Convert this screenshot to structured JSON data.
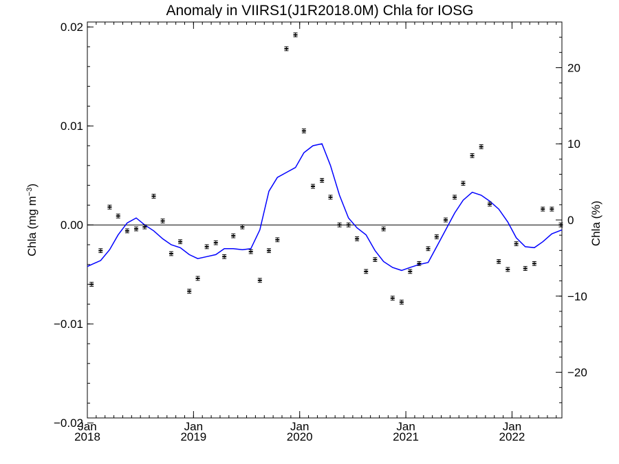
{
  "chart_data": {
    "type": "line",
    "title": "Anomaly in VIIRS1(J1R2018.0M) Chla for IOSG",
    "ylabel": "Chla (mg m",
    "ylabel_exp": "−3",
    "ylabel_close": ")",
    "y2label": "Chla (%)",
    "xlim": [
      2018.0,
      2022.47
    ],
    "ylim": [
      -0.0195,
      0.0205
    ],
    "y2lim": [
      -26,
      26
    ],
    "grid": false,
    "x_ticks": [
      {
        "value": 2018.0,
        "month": "Jan",
        "year": "2018"
      },
      {
        "value": 2019.0,
        "month": "Jan",
        "year": "2019"
      },
      {
        "value": 2020.0,
        "month": "Jan",
        "year": "2020"
      },
      {
        "value": 2021.0,
        "month": "Jan",
        "year": "2021"
      },
      {
        "value": 2022.0,
        "month": "Jan",
        "year": "2022"
      }
    ],
    "y_ticks": [
      {
        "value": 0.02,
        "label": "0.02"
      },
      {
        "value": 0.01,
        "label": "0.01"
      },
      {
        "value": 0.0,
        "label": "0.00"
      },
      {
        "value": -0.01,
        "label": "−0.01"
      },
      {
        "value": -0.02,
        "label": "−0.02"
      }
    ],
    "y2_ticks": [
      {
        "value": 20,
        "label": "20"
      },
      {
        "value": 10,
        "label": "10"
      },
      {
        "value": 0,
        "label": "0"
      },
      {
        "value": -10,
        "label": "−10"
      },
      {
        "value": -20,
        "label": "−20"
      }
    ],
    "colors": {
      "smooth": "#0000ff",
      "points": "#000000",
      "zero": "#000000"
    },
    "series": [
      {
        "kind": "monthly-anomaly-points",
        "x": [
          2018.04,
          2018.125,
          2018.21,
          2018.29,
          2018.375,
          2018.46,
          2018.54,
          2018.625,
          2018.71,
          2018.79,
          2018.875,
          2018.96,
          2019.04,
          2019.125,
          2019.21,
          2019.29,
          2019.375,
          2019.46,
          2019.54,
          2019.625,
          2019.71,
          2019.79,
          2019.875,
          2019.96,
          2020.04,
          2020.125,
          2020.21,
          2020.29,
          2020.375,
          2020.46,
          2020.54,
          2020.625,
          2020.71,
          2020.79,
          2020.875,
          2020.96,
          2021.04,
          2021.125,
          2021.21,
          2021.29,
          2021.375,
          2021.46,
          2021.54,
          2021.625,
          2021.71,
          2021.79,
          2021.875,
          2021.96,
          2022.04,
          2022.125,
          2022.21,
          2022.29,
          2022.375,
          2022.46
        ],
        "y": [
          -0.006,
          -0.0026,
          0.0018,
          0.0009,
          -0.0006,
          -0.0004,
          -0.0002,
          0.0029,
          0.0004,
          -0.0029,
          -0.0017,
          -0.0067,
          -0.0054,
          -0.0022,
          -0.0018,
          -0.0032,
          -0.0011,
          -0.0002,
          -0.0027,
          -0.0056,
          -0.0026,
          -0.0015,
          0.0178,
          0.0192,
          0.0095,
          0.0039,
          0.0045,
          0.0028,
          0.0,
          0.0,
          -0.0014,
          -0.0047,
          -0.0035,
          -0.0004,
          -0.0074,
          -0.0078,
          -0.0047,
          -0.0039,
          -0.0024,
          -0.0012,
          0.0005,
          0.0028,
          0.0042,
          0.007,
          0.0079,
          0.0021,
          -0.0037,
          -0.0045,
          -0.0019,
          -0.0044,
          -0.0039,
          0.0016,
          0.0016,
          0.0
        ],
        "err": 0.0002
      },
      {
        "kind": "smoothed-line",
        "x": [
          2018.0,
          2018.04,
          2018.125,
          2018.21,
          2018.29,
          2018.375,
          2018.46,
          2018.54,
          2018.625,
          2018.71,
          2018.79,
          2018.875,
          2018.96,
          2019.04,
          2019.125,
          2019.21,
          2019.29,
          2019.375,
          2019.46,
          2019.54,
          2019.625,
          2019.71,
          2019.79,
          2019.875,
          2019.96,
          2020.04,
          2020.125,
          2020.21,
          2020.29,
          2020.375,
          2020.46,
          2020.54,
          2020.625,
          2020.71,
          2020.79,
          2020.875,
          2020.96,
          2021.04,
          2021.125,
          2021.21,
          2021.29,
          2021.375,
          2021.46,
          2021.54,
          2021.625,
          2021.71,
          2021.79,
          2021.875,
          2021.96,
          2022.04,
          2022.125,
          2022.21,
          2022.29,
          2022.375,
          2022.47
        ],
        "y": [
          -0.0042,
          -0.004,
          -0.0036,
          -0.0025,
          -0.001,
          0.0002,
          0.0007,
          0.0,
          -0.0006,
          -0.0014,
          -0.002,
          -0.0023,
          -0.003,
          -0.0034,
          -0.0032,
          -0.003,
          -0.0024,
          -0.0024,
          -0.0025,
          -0.0024,
          -0.0005,
          0.0034,
          0.0048,
          0.0053,
          0.0058,
          0.0073,
          0.008,
          0.0082,
          0.006,
          0.003,
          0.0007,
          -0.0003,
          -0.001,
          -0.0026,
          -0.0037,
          -0.0043,
          -0.0046,
          -0.0043,
          -0.004,
          -0.0038,
          -0.0022,
          -0.0005,
          0.0012,
          0.0025,
          0.0033,
          0.003,
          0.0024,
          0.0016,
          0.0003,
          -0.0013,
          -0.0022,
          -0.0023,
          -0.0017,
          -0.0009,
          -0.0005
        ]
      }
    ]
  }
}
